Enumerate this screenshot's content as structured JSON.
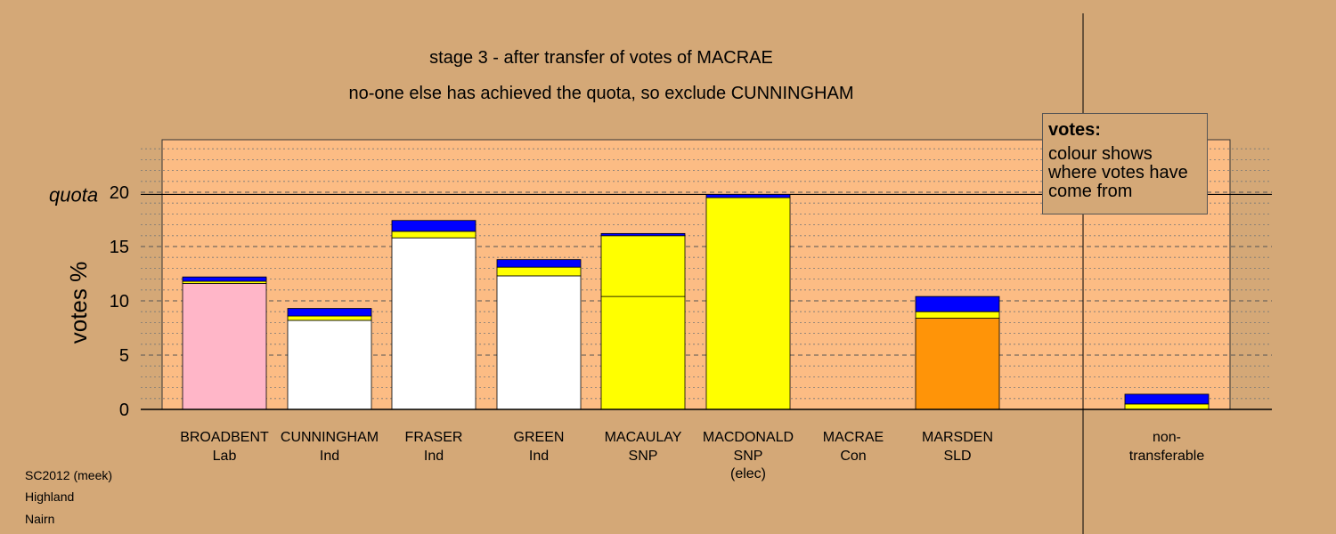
{
  "chart_data": {
    "type": "bar",
    "stacked": true,
    "titles": [
      "stage 3 - after transfer of votes of MACRAE",
      "no-one else has achieved the quota, so exclude CUNNINGHAM"
    ],
    "ylabel": "votes %",
    "ylim": [
      0,
      25
    ],
    "yticks": [
      0,
      5,
      10,
      15,
      20
    ],
    "quota": {
      "label": "quota",
      "value": 19.8
    },
    "legend": {
      "title": "votes:",
      "text": "colour shows where votes have come from",
      "position": "top-right"
    },
    "candidates": [
      {
        "name": "BROADBENT",
        "party": "Lab",
        "note": "",
        "segments": [
          {
            "color": "#ffb6c8",
            "value": 11.6
          },
          {
            "color": "#ffff00",
            "value": 0.2
          },
          {
            "color": "#0000ff",
            "value": 0.4
          }
        ]
      },
      {
        "name": "CUNNINGHAM",
        "party": "Ind",
        "note": "",
        "segments": [
          {
            "color": "#ffffff",
            "value": 8.2
          },
          {
            "color": "#ffff00",
            "value": 0.4
          },
          {
            "color": "#0000ff",
            "value": 0.7
          }
        ]
      },
      {
        "name": "FRASER",
        "party": "Ind",
        "note": "",
        "segments": [
          {
            "color": "#ffffff",
            "value": 15.8
          },
          {
            "color": "#ffff00",
            "value": 0.6
          },
          {
            "color": "#0000ff",
            "value": 1.0
          }
        ]
      },
      {
        "name": "GREEN",
        "party": "Ind",
        "note": "",
        "segments": [
          {
            "color": "#ffffff",
            "value": 12.3
          },
          {
            "color": "#ffff00",
            "value": 0.8
          },
          {
            "color": "#0000ff",
            "value": 0.7
          }
        ]
      },
      {
        "name": "MACAULAY",
        "party": "SNP",
        "note": "",
        "segments": [
          {
            "color": "#ffff00",
            "value": 10.4
          },
          {
            "color": "#ffff00",
            "value": 5.6
          },
          {
            "color": "#0000ff",
            "value": 0.2
          }
        ]
      },
      {
        "name": "MACDONALD",
        "party": "SNP",
        "note": "(elec)",
        "segments": [
          {
            "color": "#ffff00",
            "value": 19.5
          },
          {
            "color": "#0000ff",
            "value": 0.3
          }
        ]
      },
      {
        "name": "MACRAE",
        "party": "Con",
        "note": "",
        "segments": []
      },
      {
        "name": "MARSDEN",
        "party": "SLD",
        "note": "",
        "segments": [
          {
            "color": "#ff9408",
            "value": 8.4
          },
          {
            "color": "#ffff00",
            "value": 0.6
          },
          {
            "color": "#0000ff",
            "value": 1.4
          }
        ]
      },
      {
        "name": "non-",
        "party": "transferable",
        "note": "",
        "segments": [
          {
            "color": "#ffff00",
            "value": 0.5
          },
          {
            "color": "#0000ff",
            "value": 0.9
          }
        ]
      }
    ]
  },
  "footer": [
    "SC2012 (meek)",
    "Highland",
    "Nairn"
  ]
}
